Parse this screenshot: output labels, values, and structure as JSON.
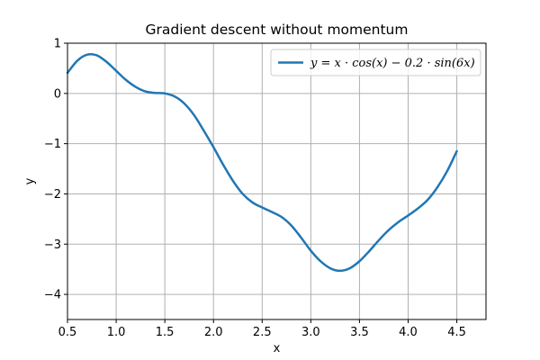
{
  "chart_data": {
    "type": "line",
    "title": "Gradient descent without momentum",
    "xlabel": "x",
    "ylabel": "y",
    "xlim": [
      0.5,
      4.8
    ],
    "ylim": [
      -4.5,
      1.0
    ],
    "grid": true,
    "legend_position": "top-right",
    "x_ticks": [
      0.5,
      1.0,
      1.5,
      2.0,
      2.5,
      3.0,
      3.5,
      4.0,
      4.5
    ],
    "x_tick_labels": [
      "0.5",
      "1.0",
      "1.5",
      "2.0",
      "2.5",
      "3.0",
      "3.5",
      "4.0",
      "4.5"
    ],
    "y_ticks": [
      1,
      0,
      -1,
      -2,
      -3,
      -4
    ],
    "y_tick_labels": [
      "1",
      "0",
      "−1",
      "−2",
      "−3",
      "−4"
    ],
    "series": [
      {
        "name": "y = x · cos(x) − 0.2 · sin(6x)",
        "color": "#1f77b4",
        "x": [
          0.5,
          0.6,
          0.7,
          0.8,
          0.9,
          1.0,
          1.1,
          1.2,
          1.3,
          1.4,
          1.5,
          1.6,
          1.7,
          1.8,
          1.9,
          2.0,
          2.1,
          2.2,
          2.3,
          2.4,
          2.5,
          2.6,
          2.7,
          2.8,
          2.9,
          3.0,
          3.1,
          3.2,
          3.3,
          3.4,
          3.5,
          3.6,
          3.7,
          3.8,
          3.9,
          4.0,
          4.1,
          4.2,
          4.3,
          4.4,
          4.5
        ],
        "y": [
          0.41,
          0.65,
          0.77,
          0.76,
          0.63,
          0.45,
          0.27,
          0.13,
          0.04,
          0.01,
          0.0,
          -0.06,
          -0.2,
          -0.43,
          -0.74,
          -1.07,
          -1.42,
          -1.74,
          -2.0,
          -2.17,
          -2.27,
          -2.36,
          -2.46,
          -2.63,
          -2.87,
          -3.13,
          -3.34,
          -3.48,
          -3.53,
          -3.48,
          -3.34,
          -3.14,
          -2.92,
          -2.72,
          -2.56,
          -2.43,
          -2.29,
          -2.12,
          -1.87,
          -1.55,
          -1.15
        ]
      }
    ]
  }
}
